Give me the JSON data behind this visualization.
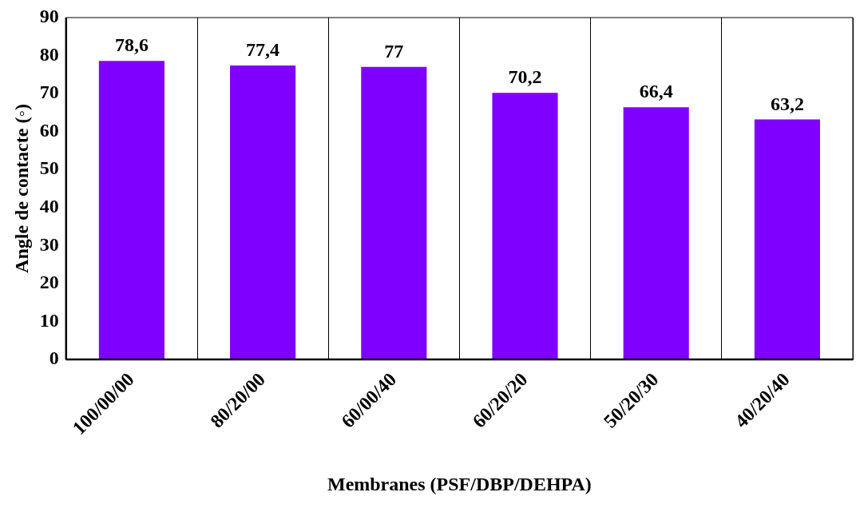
{
  "chart_data": {
    "type": "bar",
    "xlabel": "Membranes (PSF/DBP/DEHPA)",
    "ylabel": "Angle de contacte (◦)",
    "categories": [
      "100/00/00",
      "80/20/00",
      "60/00/40",
      "60/20/20",
      "50/20/30",
      "40/20/40"
    ],
    "values": [
      78.6,
      77.4,
      77,
      70.2,
      66.4,
      63.2
    ],
    "value_labels": [
      "78,6",
      "77,4",
      "77",
      "70,2",
      "66,4",
      "63,2"
    ],
    "color": "#7f00ff",
    "ylim": [
      0,
      90
    ],
    "yticks": [
      0,
      10,
      20,
      30,
      40,
      50,
      60,
      70,
      80,
      90
    ],
    "grid": "x",
    "legend": false
  }
}
